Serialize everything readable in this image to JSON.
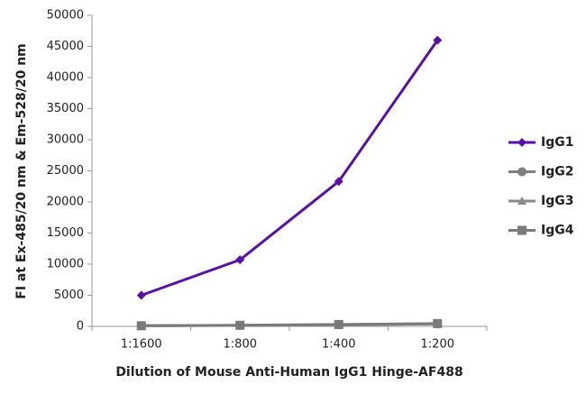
{
  "chart_data": {
    "type": "line",
    "x_label": "Dilution of Mouse Anti-Human IgG1 Hinge-AF488",
    "y_label": "FI at Ex-485/20 nm & Em-528/20 nm",
    "categories": [
      "1:1600",
      "1:800",
      "1:400",
      "1:200"
    ],
    "series": [
      {
        "name": "IgG1",
        "color": "#5a0fa8",
        "marker": "diamond",
        "values": [
          5000,
          10700,
          23300,
          46000
        ]
      },
      {
        "name": "IgG2",
        "color": "#808080",
        "marker": "circle",
        "values": [
          100,
          150,
          250,
          400
        ]
      },
      {
        "name": "IgG3",
        "color": "#8a8a8a",
        "marker": "triangle",
        "values": [
          100,
          170,
          280,
          420
        ]
      },
      {
        "name": "IgG4",
        "color": "#7a7a7a",
        "marker": "square",
        "values": [
          100,
          180,
          300,
          450
        ]
      }
    ],
    "ylim": [
      0,
      50000
    ],
    "yticks": [
      0,
      5000,
      10000,
      15000,
      20000,
      25000,
      30000,
      35000,
      40000,
      45000,
      50000
    ],
    "grid": false,
    "legend": "right"
  }
}
